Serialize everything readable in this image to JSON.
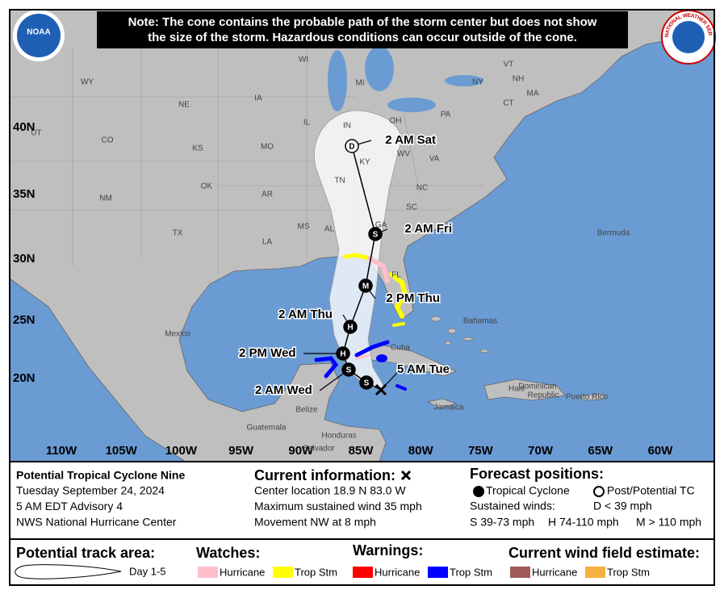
{
  "logos": {
    "noaa": "NOAA",
    "nws": "NATIONAL WEATHER SERVICE"
  },
  "note": [
    "Note: The cone contains the probable path of the storm center but does not show",
    "the size of the storm. Hazardous conditions can occur outside of the cone."
  ],
  "map": {
    "latitude_labels": [
      "40N",
      "35N",
      "30N",
      "25N",
      "20N"
    ],
    "longitude_labels": [
      "110W",
      "105W",
      "100W",
      "95W",
      "90W",
      "85W",
      "80W",
      "75W",
      "70W",
      "65W",
      "60W"
    ],
    "regions": [
      "WY",
      "NE",
      "IA",
      "WI",
      "MI",
      "NY",
      "VT",
      "NH",
      "MA",
      "CT",
      "PA",
      "IL",
      "IN",
      "OH",
      "UT",
      "CO",
      "KS",
      "MO",
      "KY",
      "WV",
      "VA",
      "NM",
      "OK",
      "AR",
      "TN",
      "NC",
      "TX",
      "MS",
      "AL",
      "GA",
      "SC",
      "LA",
      "FL",
      "Mexico",
      "Bermuda",
      "Bahamas",
      "Cuba",
      "Jamaica",
      "Dominican",
      "Haiti",
      "Republic",
      "Puerto Rico",
      "Guatemala",
      "Belize",
      "Honduras",
      "Salvador"
    ],
    "track": [
      {
        "symbol": "D",
        "label": "2 AM Sat"
      },
      {
        "symbol": "S",
        "label": "2 AM Fri"
      },
      {
        "symbol": "M",
        "label": "2 PM Thu"
      },
      {
        "symbol": "H",
        "label": "2 AM Thu"
      },
      {
        "symbol": "H",
        "label": "2 PM Wed"
      },
      {
        "symbol": "S",
        "label": "2 AM Wed"
      },
      {
        "symbol": "S"
      }
    ],
    "current_label": "5 AM Tue"
  },
  "info": {
    "title": "Potential Tropical Cyclone Nine",
    "date": "Tuesday September 24, 2024",
    "advisory": "5 AM EDT Advisory 4",
    "source": "NWS National Hurricane Center"
  },
  "current": {
    "heading": "Current information:",
    "lines": [
      "Center location 18.9 N 83.0 W",
      "Maximum sustained wind 35 mph",
      "Movement NW at 8 mph"
    ]
  },
  "forecast": {
    "heading": "Forecast positions:",
    "tropical": "Tropical Cyclone",
    "post": "Post/Potential TC",
    "winds_label": "Sustained winds:",
    "d": "D < 39 mph",
    "s": "S 39-73 mph",
    "h": "H 74-110 mph",
    "m": "M > 110 mph"
  },
  "legend": {
    "track_area": "Potential track area:",
    "day_range": "Day 1-5",
    "watches": "Watches:",
    "warnings": "Warnings:",
    "wind_field": "Current wind field estimate:",
    "watch_items": [
      "Hurricane",
      "Trop Stm"
    ],
    "warning_items": [
      "Hurricane",
      "Trop Stm"
    ],
    "wind_items": [
      "Hurricane",
      "Trop Stm"
    ]
  }
}
